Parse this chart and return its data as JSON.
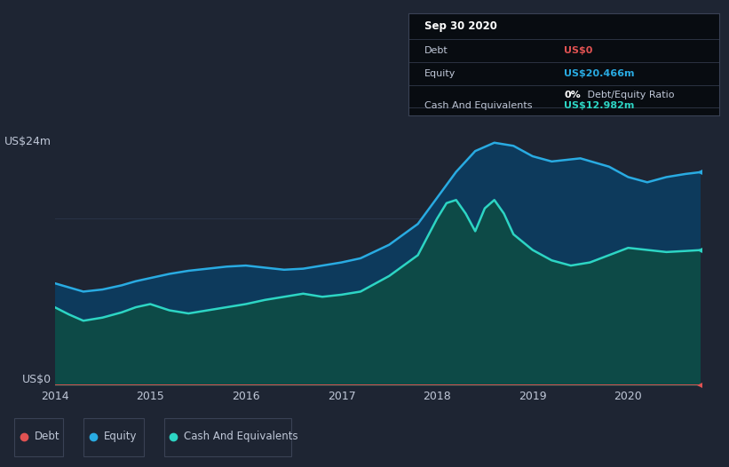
{
  "bg_color": "#1e2533",
  "equity_color": "#29abe2",
  "cash_color": "#2dd5c4",
  "debt_color": "#e05252",
  "equity_fill": "#0d3a5c",
  "cash_fill": "#0d4a47",
  "grid_color": "#2a3347",
  "text_color": "#c0c8d8",
  "info_box_bg": "#080c11",
  "info_box_border": "#3a4255",
  "legend_border": "#3a4255",
  "title": "Sep 30 2020",
  "ylabel_top": "US$24m",
  "ylabel_bottom": "US$0",
  "x_ticks": [
    "2014",
    "2015",
    "2016",
    "2017",
    "2018",
    "2019",
    "2020"
  ],
  "debt_label": "Debt",
  "equity_label": "Equity",
  "cash_label": "Cash And Equivalents",
  "info_debt_val": "US$0",
  "info_equity_val": "US$20.466m",
  "info_ratio": "0% Debt/Equity Ratio",
  "info_ratio_bold": "0%",
  "info_cash_val": "US$12.982m",
  "ylim": [
    0,
    24
  ],
  "xlim_min": 0,
  "xlim_max": 6.75,
  "x_tick_positions": [
    0,
    1,
    2,
    3,
    4,
    5,
    6
  ],
  "equity_data_x": [
    0.0,
    0.15,
    0.3,
    0.5,
    0.7,
    0.85,
    1.0,
    1.2,
    1.4,
    1.6,
    1.8,
    2.0,
    2.2,
    2.4,
    2.6,
    2.8,
    3.0,
    3.2,
    3.5,
    3.8,
    4.0,
    4.2,
    4.4,
    4.6,
    4.8,
    5.0,
    5.2,
    5.5,
    5.8,
    6.0,
    6.2,
    6.4,
    6.6,
    6.75
  ],
  "equity_data_y": [
    9.8,
    9.4,
    9.0,
    9.2,
    9.6,
    10.0,
    10.3,
    10.7,
    11.0,
    11.2,
    11.4,
    11.5,
    11.3,
    11.1,
    11.2,
    11.5,
    11.8,
    12.2,
    13.5,
    15.5,
    18.0,
    20.5,
    22.5,
    23.3,
    23.0,
    22.0,
    21.5,
    21.8,
    21.0,
    20.0,
    19.5,
    20.0,
    20.3,
    20.466
  ],
  "cash_data_x": [
    0.0,
    0.15,
    0.3,
    0.5,
    0.7,
    0.85,
    1.0,
    1.2,
    1.4,
    1.6,
    1.8,
    2.0,
    2.2,
    2.4,
    2.6,
    2.8,
    3.0,
    3.2,
    3.5,
    3.8,
    4.0,
    4.1,
    4.2,
    4.3,
    4.4,
    4.5,
    4.6,
    4.7,
    4.8,
    5.0,
    5.2,
    5.4,
    5.6,
    5.8,
    6.0,
    6.2,
    6.4,
    6.6,
    6.75
  ],
  "cash_data_y": [
    7.5,
    6.8,
    6.2,
    6.5,
    7.0,
    7.5,
    7.8,
    7.2,
    6.9,
    7.2,
    7.5,
    7.8,
    8.2,
    8.5,
    8.8,
    8.5,
    8.7,
    9.0,
    10.5,
    12.5,
    16.0,
    17.5,
    17.8,
    16.5,
    14.8,
    17.0,
    17.8,
    16.5,
    14.5,
    13.0,
    12.0,
    11.5,
    11.8,
    12.5,
    13.2,
    13.0,
    12.8,
    12.9,
    12.982
  ],
  "debt_data_x": [
    0.0,
    6.75
  ],
  "debt_data_y": [
    0.0,
    0.0
  ]
}
